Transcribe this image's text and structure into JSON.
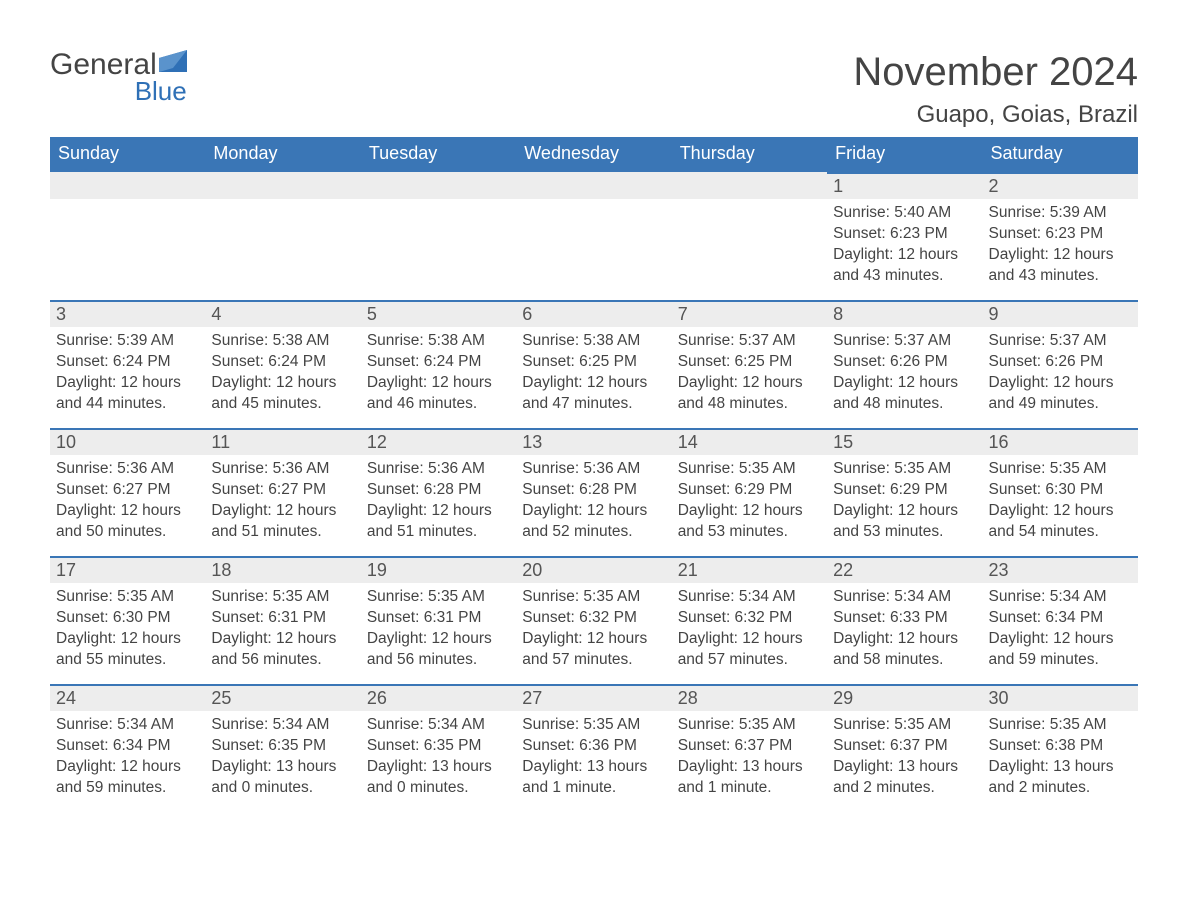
{
  "brand": {
    "general": "General",
    "blue": "Blue",
    "flag_color": "#2f70b6"
  },
  "title": "November 2024",
  "location": "Guapo, Goias, Brazil",
  "colors": {
    "header_bg": "#3a76b6",
    "header_text": "#ffffff",
    "daynum_bg": "#ededed",
    "week_border": "#3a76b6",
    "body_text": "#444444",
    "page_bg": "#ffffff"
  },
  "weekdays": [
    "Sunday",
    "Monday",
    "Tuesday",
    "Wednesday",
    "Thursday",
    "Friday",
    "Saturday"
  ],
  "weeks": [
    [
      null,
      null,
      null,
      null,
      null,
      {
        "n": "1",
        "sunrise": "Sunrise: 5:40 AM",
        "sunset": "Sunset: 6:23 PM",
        "daylight": "Daylight: 12 hours and 43 minutes."
      },
      {
        "n": "2",
        "sunrise": "Sunrise: 5:39 AM",
        "sunset": "Sunset: 6:23 PM",
        "daylight": "Daylight: 12 hours and 43 minutes."
      }
    ],
    [
      {
        "n": "3",
        "sunrise": "Sunrise: 5:39 AM",
        "sunset": "Sunset: 6:24 PM",
        "daylight": "Daylight: 12 hours and 44 minutes."
      },
      {
        "n": "4",
        "sunrise": "Sunrise: 5:38 AM",
        "sunset": "Sunset: 6:24 PM",
        "daylight": "Daylight: 12 hours and 45 minutes."
      },
      {
        "n": "5",
        "sunrise": "Sunrise: 5:38 AM",
        "sunset": "Sunset: 6:24 PM",
        "daylight": "Daylight: 12 hours and 46 minutes."
      },
      {
        "n": "6",
        "sunrise": "Sunrise: 5:38 AM",
        "sunset": "Sunset: 6:25 PM",
        "daylight": "Daylight: 12 hours and 47 minutes."
      },
      {
        "n": "7",
        "sunrise": "Sunrise: 5:37 AM",
        "sunset": "Sunset: 6:25 PM",
        "daylight": "Daylight: 12 hours and 48 minutes."
      },
      {
        "n": "8",
        "sunrise": "Sunrise: 5:37 AM",
        "sunset": "Sunset: 6:26 PM",
        "daylight": "Daylight: 12 hours and 48 minutes."
      },
      {
        "n": "9",
        "sunrise": "Sunrise: 5:37 AM",
        "sunset": "Sunset: 6:26 PM",
        "daylight": "Daylight: 12 hours and 49 minutes."
      }
    ],
    [
      {
        "n": "10",
        "sunrise": "Sunrise: 5:36 AM",
        "sunset": "Sunset: 6:27 PM",
        "daylight": "Daylight: 12 hours and 50 minutes."
      },
      {
        "n": "11",
        "sunrise": "Sunrise: 5:36 AM",
        "sunset": "Sunset: 6:27 PM",
        "daylight": "Daylight: 12 hours and 51 minutes."
      },
      {
        "n": "12",
        "sunrise": "Sunrise: 5:36 AM",
        "sunset": "Sunset: 6:28 PM",
        "daylight": "Daylight: 12 hours and 51 minutes."
      },
      {
        "n": "13",
        "sunrise": "Sunrise: 5:36 AM",
        "sunset": "Sunset: 6:28 PM",
        "daylight": "Daylight: 12 hours and 52 minutes."
      },
      {
        "n": "14",
        "sunrise": "Sunrise: 5:35 AM",
        "sunset": "Sunset: 6:29 PM",
        "daylight": "Daylight: 12 hours and 53 minutes."
      },
      {
        "n": "15",
        "sunrise": "Sunrise: 5:35 AM",
        "sunset": "Sunset: 6:29 PM",
        "daylight": "Daylight: 12 hours and 53 minutes."
      },
      {
        "n": "16",
        "sunrise": "Sunrise: 5:35 AM",
        "sunset": "Sunset: 6:30 PM",
        "daylight": "Daylight: 12 hours and 54 minutes."
      }
    ],
    [
      {
        "n": "17",
        "sunrise": "Sunrise: 5:35 AM",
        "sunset": "Sunset: 6:30 PM",
        "daylight": "Daylight: 12 hours and 55 minutes."
      },
      {
        "n": "18",
        "sunrise": "Sunrise: 5:35 AM",
        "sunset": "Sunset: 6:31 PM",
        "daylight": "Daylight: 12 hours and 56 minutes."
      },
      {
        "n": "19",
        "sunrise": "Sunrise: 5:35 AM",
        "sunset": "Sunset: 6:31 PM",
        "daylight": "Daylight: 12 hours and 56 minutes."
      },
      {
        "n": "20",
        "sunrise": "Sunrise: 5:35 AM",
        "sunset": "Sunset: 6:32 PM",
        "daylight": "Daylight: 12 hours and 57 minutes."
      },
      {
        "n": "21",
        "sunrise": "Sunrise: 5:34 AM",
        "sunset": "Sunset: 6:32 PM",
        "daylight": "Daylight: 12 hours and 57 minutes."
      },
      {
        "n": "22",
        "sunrise": "Sunrise: 5:34 AM",
        "sunset": "Sunset: 6:33 PM",
        "daylight": "Daylight: 12 hours and 58 minutes."
      },
      {
        "n": "23",
        "sunrise": "Sunrise: 5:34 AM",
        "sunset": "Sunset: 6:34 PM",
        "daylight": "Daylight: 12 hours and 59 minutes."
      }
    ],
    [
      {
        "n": "24",
        "sunrise": "Sunrise: 5:34 AM",
        "sunset": "Sunset: 6:34 PM",
        "daylight": "Daylight: 12 hours and 59 minutes."
      },
      {
        "n": "25",
        "sunrise": "Sunrise: 5:34 AM",
        "sunset": "Sunset: 6:35 PM",
        "daylight": "Daylight: 13 hours and 0 minutes."
      },
      {
        "n": "26",
        "sunrise": "Sunrise: 5:34 AM",
        "sunset": "Sunset: 6:35 PM",
        "daylight": "Daylight: 13 hours and 0 minutes."
      },
      {
        "n": "27",
        "sunrise": "Sunrise: 5:35 AM",
        "sunset": "Sunset: 6:36 PM",
        "daylight": "Daylight: 13 hours and 1 minute."
      },
      {
        "n": "28",
        "sunrise": "Sunrise: 5:35 AM",
        "sunset": "Sunset: 6:37 PM",
        "daylight": "Daylight: 13 hours and 1 minute."
      },
      {
        "n": "29",
        "sunrise": "Sunrise: 5:35 AM",
        "sunset": "Sunset: 6:37 PM",
        "daylight": "Daylight: 13 hours and 2 minutes."
      },
      {
        "n": "30",
        "sunrise": "Sunrise: 5:35 AM",
        "sunset": "Sunset: 6:38 PM",
        "daylight": "Daylight: 13 hours and 2 minutes."
      }
    ]
  ]
}
